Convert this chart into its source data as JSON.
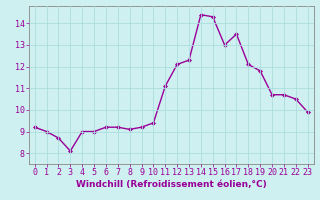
{
  "x": [
    0,
    1,
    2,
    3,
    4,
    5,
    6,
    7,
    8,
    9,
    10,
    11,
    12,
    13,
    14,
    15,
    16,
    17,
    18,
    19,
    20,
    21,
    22,
    23
  ],
  "y": [
    9.2,
    9.0,
    8.7,
    8.1,
    9.0,
    9.0,
    9.2,
    9.2,
    9.1,
    9.2,
    9.4,
    11.1,
    12.1,
    12.3,
    14.4,
    14.3,
    13.0,
    13.5,
    12.1,
    11.8,
    10.7,
    10.7,
    10.5,
    9.9
  ],
  "line_color": "#990099",
  "marker": "D",
  "marker_size": 2.0,
  "line_width": 1.0,
  "xlabel": "Windchill (Refroidissement éolien,°C)",
  "xlim": [
    -0.5,
    23.5
  ],
  "ylim": [
    7.5,
    14.8
  ],
  "yticks": [
    8,
    9,
    10,
    11,
    12,
    13,
    14
  ],
  "xticks": [
    0,
    1,
    2,
    3,
    4,
    5,
    6,
    7,
    8,
    9,
    10,
    11,
    12,
    13,
    14,
    15,
    16,
    17,
    18,
    19,
    20,
    21,
    22,
    23
  ],
  "background_color": "#cff0f0",
  "grid_color": "#aadddd",
  "xlabel_color": "#990099",
  "tick_color": "#990099",
  "xlabel_fontsize": 6.5,
  "tick_fontsize": 6.0,
  "spine_color": "#888888"
}
